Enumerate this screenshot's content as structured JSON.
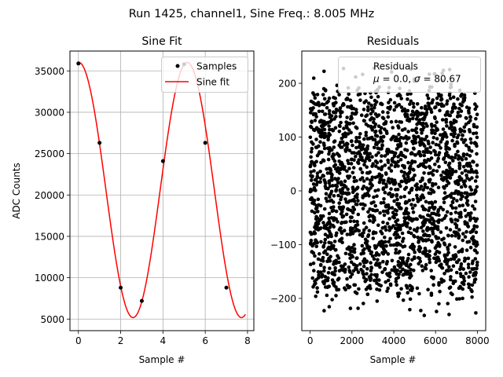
{
  "suptitle": "Run 1425, channel1, Sine Freq.: 8.005 MHz",
  "colors": {
    "samples": "#000000",
    "fit": "#ff0000",
    "grid": "#b0b0b0",
    "residuals": "#000000"
  },
  "chart_data": [
    {
      "type": "scatter",
      "title": "Sine Fit",
      "xlabel": "Sample #",
      "ylabel": "ADC Counts",
      "xlim": [
        -0.4,
        8.3
      ],
      "ylim": [
        3600,
        37400
      ],
      "xticks": [
        0,
        2,
        4,
        6,
        8
      ],
      "yticks": [
        5000,
        10000,
        15000,
        20000,
        25000,
        30000,
        35000
      ],
      "grid": true,
      "legend": {
        "position": "upper right",
        "entries": [
          "Samples",
          "Sine fit"
        ]
      },
      "series": [
        {
          "name": "Samples",
          "kind": "points",
          "x": [
            0,
            1,
            2,
            3,
            4,
            5,
            6,
            7
          ],
          "y": [
            35900,
            26300,
            8800,
            7200,
            24100,
            35800,
            26300,
            8800
          ]
        },
        {
          "name": "Sine fit",
          "kind": "line",
          "model": {
            "offset": 20600,
            "amplitude": 15420,
            "samples_per_cycle": 5.13,
            "peak_at": 5.15,
            "x_range": [
              0,
              7.9
            ]
          }
        }
      ]
    },
    {
      "type": "scatter",
      "title": "Residuals",
      "xlabel": "Sample #",
      "ylabel": "",
      "xlim": [
        -400,
        8400
      ],
      "ylim": [
        -260,
        260
      ],
      "xticks": [
        0,
        2000,
        4000,
        6000,
        8000
      ],
      "yticks": [
        -200,
        -100,
        0,
        100,
        200
      ],
      "grid": false,
      "legend": {
        "position": "upper right",
        "entries": [
          "Residuals",
          "$\\mu$ = 0.0, $\\sigma$ = 80.67"
        ]
      },
      "series": [
        {
          "name": "Residuals",
          "n_points": 8000,
          "mean": 0.0,
          "std": 80.67,
          "range": [
            -237,
            228
          ]
        }
      ]
    }
  ]
}
